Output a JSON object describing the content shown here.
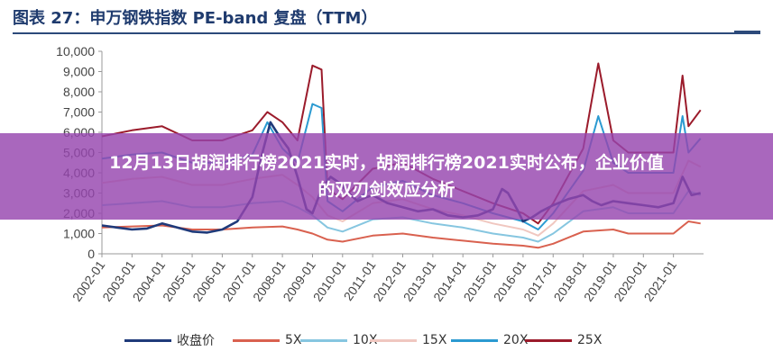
{
  "figure": {
    "title": "图表 27：申万钢铁指数 PE-band 复盘（TTM）"
  },
  "banner": {
    "line1": "12月13日胡润排行榜2021实时，胡润排行榜2021实时公布，企业价值",
    "line2": "的双刃剑效应分析"
  },
  "chart_data": {
    "type": "line",
    "title": "图表 27：申万钢铁指数 PE-band 复盘（TTM）",
    "xlabel": "",
    "ylabel": "",
    "ylim": [
      0,
      10000
    ],
    "yticks": [
      0,
      1000,
      2000,
      3000,
      4000,
      5000,
      6000,
      7000,
      8000,
      9000,
      10000
    ],
    "ytick_labels": [
      "0",
      "1,000",
      "2,000",
      "3,000",
      "4,000",
      "5,000",
      "6,000",
      "7,000",
      "8,000",
      "9,000",
      "10,000"
    ],
    "xlim": [
      2002.0,
      2022.0
    ],
    "xtick_labels": [
      "2002-01",
      "2003-01",
      "2004-01",
      "2005-01",
      "2006-01",
      "2007-01",
      "2008-01",
      "2009-01",
      "2010-01",
      "2011-01",
      "2012-01",
      "2013-01",
      "2014-01",
      "2015-01",
      "2016-01",
      "2017-01",
      "2018-01",
      "2019-01",
      "2020-01",
      "2021-01"
    ],
    "grid": false,
    "legend_position": "bottom",
    "series": [
      {
        "name": "收盘价",
        "color": "#1f3a7a",
        "x": [
          2002.0,
          2002.5,
          2003.0,
          2003.5,
          2004.0,
          2004.5,
          2005.0,
          2005.5,
          2006.0,
          2006.5,
          2007.0,
          2007.3,
          2007.6,
          2007.9,
          2008.2,
          2008.5,
          2008.8,
          2009.0,
          2009.3,
          2009.6,
          2009.9,
          2010.2,
          2010.5,
          2010.8,
          2011.0,
          2011.5,
          2012.0,
          2012.5,
          2013.0,
          2013.5,
          2014.0,
          2014.5,
          2015.0,
          2015.3,
          2015.5,
          2015.8,
          2016.0,
          2016.3,
          2016.6,
          2017.0,
          2017.5,
          2018.0,
          2018.3,
          2018.6,
          2019.0,
          2019.5,
          2020.0,
          2020.5,
          2021.0,
          2021.3,
          2021.6,
          2021.9
        ],
        "y": [
          1400,
          1300,
          1200,
          1250,
          1500,
          1300,
          1100,
          1050,
          1200,
          1600,
          2800,
          4800,
          6500,
          5800,
          5200,
          3800,
          2200,
          2000,
          3200,
          3800,
          3500,
          3000,
          2600,
          2800,
          2900,
          2500,
          2300,
          2100,
          2200,
          1900,
          1800,
          1900,
          2200,
          3200,
          3000,
          2200,
          1600,
          1800,
          2100,
          2400,
          2700,
          2900,
          2600,
          2400,
          2600,
          2500,
          2400,
          2300,
          2500,
          3800,
          2900,
          3000
        ]
      },
      {
        "name": "5X",
        "color": "#d9614f",
        "x": [
          2002.0,
          2003.0,
          2004.0,
          2005.0,
          2006.0,
          2007.0,
          2008.0,
          2008.5,
          2009.0,
          2009.5,
          2010.0,
          2011.0,
          2012.0,
          2013.0,
          2014.0,
          2015.0,
          2016.0,
          2016.5,
          2017.0,
          2018.0,
          2019.0,
          2019.5,
          2020.0,
          2021.0,
          2021.5,
          2021.9
        ],
        "y": [
          1300,
          1350,
          1400,
          1200,
          1200,
          1300,
          1350,
          1200,
          1000,
          700,
          600,
          900,
          1000,
          800,
          650,
          500,
          400,
          300,
          500,
          1100,
          1200,
          1000,
          1000,
          1000,
          1600,
          1500
        ]
      },
      {
        "name": "10X",
        "color": "#86c6e0",
        "x": [
          2002.0,
          2003.0,
          2004.0,
          2005.0,
          2006.0,
          2007.0,
          2008.0,
          2008.5,
          2009.0,
          2009.5,
          2010.0,
          2011.0,
          2012.0,
          2013.0,
          2014.0,
          2015.0,
          2016.0,
          2016.5,
          2017.0,
          2018.0,
          2019.0,
          2019.5,
          2020.0,
          2021.0,
          2021.5,
          2021.9
        ],
        "y": [
          2400,
          2500,
          2600,
          2300,
          2300,
          2500,
          2600,
          2300,
          1900,
          1300,
          1100,
          1700,
          1800,
          1500,
          1300,
          1000,
          800,
          600,
          1000,
          2100,
          2300,
          2000,
          2000,
          2000,
          3100,
          2900
        ]
      },
      {
        "name": "15X",
        "color": "#f0c7c0",
        "x": [
          2002.0,
          2003.0,
          2004.0,
          2005.0,
          2006.0,
          2007.0,
          2008.0,
          2008.5,
          2009.0,
          2009.5,
          2010.0,
          2011.0,
          2012.0,
          2013.0,
          2014.0,
          2015.0,
          2016.0,
          2016.5,
          2017.0,
          2018.0,
          2019.0,
          2019.5,
          2020.0,
          2021.0,
          2021.5,
          2021.9
        ],
        "y": [
          3500,
          3700,
          3800,
          3400,
          3400,
          3700,
          3900,
          3400,
          2800,
          1900,
          1600,
          2500,
          2700,
          2200,
          1900,
          1500,
          1200,
          900,
          1500,
          3100,
          3400,
          3000,
          3000,
          3000,
          4600,
          4300
        ]
      },
      {
        "name": "20X",
        "color": "#2b9ad1",
        "x": [
          2002.0,
          2003.0,
          2004.0,
          2005.0,
          2006.0,
          2007.0,
          2007.5,
          2008.0,
          2008.5,
          2009.0,
          2009.3,
          2009.5,
          2010.0,
          2011.0,
          2012.0,
          2013.0,
          2014.0,
          2015.0,
          2016.0,
          2016.5,
          2017.0,
          2018.0,
          2018.5,
          2019.0,
          2019.5,
          2020.0,
          2021.0,
          2021.3,
          2021.5,
          2021.9
        ],
        "y": [
          4700,
          4900,
          5000,
          4500,
          4500,
          4900,
          6500,
          5200,
          4500,
          7400,
          7200,
          2600,
          2100,
          3300,
          3600,
          2900,
          2500,
          2000,
          1600,
          1200,
          2000,
          4100,
          6800,
          4500,
          4000,
          4000,
          4000,
          6800,
          5000,
          5700
        ]
      },
      {
        "name": "25X",
        "color": "#9b1b2b",
        "x": [
          2002.0,
          2003.0,
          2004.0,
          2005.0,
          2006.0,
          2007.0,
          2007.5,
          2008.0,
          2008.5,
          2009.0,
          2009.3,
          2009.5,
          2010.0,
          2011.0,
          2012.0,
          2013.0,
          2014.0,
          2015.0,
          2016.0,
          2016.5,
          2017.0,
          2018.0,
          2018.5,
          2019.0,
          2019.5,
          2020.0,
          2021.0,
          2021.3,
          2021.5,
          2021.9
        ],
        "y": [
          5800,
          6100,
          6300,
          5600,
          5600,
          6100,
          7000,
          6500,
          5600,
          9300,
          9100,
          3200,
          2700,
          4200,
          4500,
          3700,
          3100,
          2500,
          2000,
          1500,
          2500,
          5200,
          9400,
          5600,
          5000,
          5000,
          5000,
          8800,
          6300,
          7100
        ]
      }
    ]
  }
}
